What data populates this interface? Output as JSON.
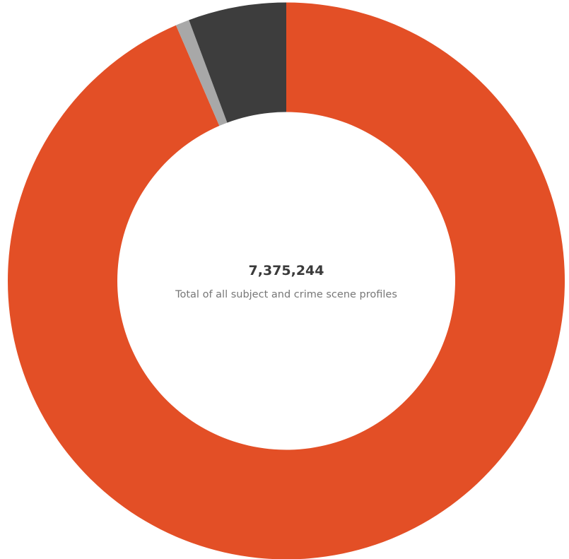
{
  "chart_data": {
    "type": "pie",
    "variant": "donut",
    "center_total": "7,375,244",
    "center_caption": "Total of all subject and crime scene profiles",
    "slices": [
      {
        "value": 6897100,
        "color": "#E34F26"
      },
      {
        "value": 59000,
        "color": "#A8A8A8"
      },
      {
        "value": 419144,
        "color": "#3D3D3D"
      }
    ],
    "start": "12 o'clock",
    "direction": "clockwise",
    "legend": "none"
  }
}
